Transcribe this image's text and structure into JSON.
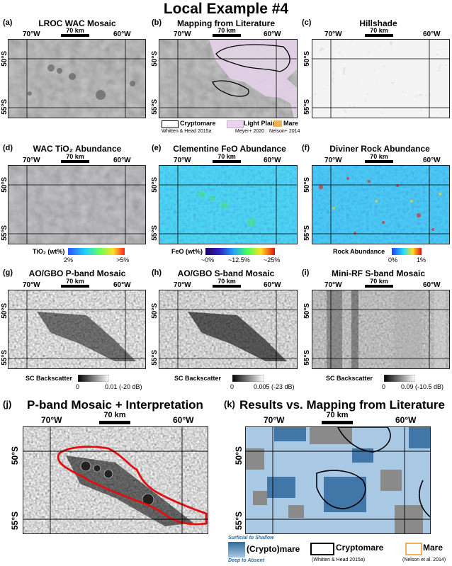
{
  "page_title": "Local Example #4",
  "scale_label": "70 km",
  "lon_labels": [
    "70°W",
    "60°W"
  ],
  "lat_labels": [
    "50°S",
    "55°S"
  ],
  "panels": {
    "a": {
      "label": "(a)",
      "title": "LROC WAC Mosaic"
    },
    "b": {
      "label": "(b)",
      "title": "Mapping from Literature",
      "legend": [
        {
          "name": "Cryptomare",
          "source": "Whitten & Head 2015a",
          "color": "#ffffff"
        },
        {
          "name": "Light Plains",
          "source": "Meyer+ 2020",
          "color": "#e8d4ec"
        },
        {
          "name": "Mare",
          "source": "Nelson+ 2014",
          "color": "#f0b060"
        }
      ]
    },
    "c": {
      "label": "(c)",
      "title": "Hillshade"
    },
    "d": {
      "label": "(d)",
      "title": "WAC TiO₂ Abundance",
      "colorbar_label": "TiO₂ (wt%)",
      "ticks": [
        "2%",
        ">5%"
      ]
    },
    "e": {
      "label": "(e)",
      "title": "Clementine FeO Abundance",
      "colorbar_label": "FeO (wt%)",
      "ticks": [
        "~0%",
        "~12.5%",
        "~25%"
      ]
    },
    "f": {
      "label": "(f)",
      "title": "Diviner Rock Abundance",
      "colorbar_label": "Rock Abundance",
      "ticks": [
        "0%",
        "1%"
      ]
    },
    "g": {
      "label": "(g)",
      "title": "AO/GBO P-band Mosaic",
      "colorbar_label": "SC Backscatter",
      "ticks": [
        "0",
        "0.01 (-20 dB)"
      ]
    },
    "h": {
      "label": "(h)",
      "title": "AO/GBO S-band Mosaic",
      "colorbar_label": "SC Backscatter",
      "ticks": [
        "0",
        "0.005 (-23 dB)"
      ]
    },
    "i": {
      "label": "(i)",
      "title": "Mini-RF S-band Mosaic",
      "colorbar_label": "SC Backscatter",
      "ticks": [
        "0",
        "0.09 (-10.5 dB)"
      ]
    },
    "j": {
      "label": "(j)",
      "title": "P-band Mosaic + Interpretation"
    },
    "k": {
      "label": "(k)",
      "title": "Results vs. Mapping from Literature",
      "legend": {
        "gradient_top": "Surficial to Shallow",
        "gradient_name": "(Crypto)mare",
        "gradient_bottom": "Deep to Absent",
        "cryptomare": "Cryptomare",
        "cryptomare_source": "(Whitten & Head 2015a)",
        "mare": "Mare",
        "mare_source": "(Nelson et al. 2014)"
      }
    }
  },
  "colors": {
    "interpretation_outline": "#e01010",
    "mare": "#f0b060",
    "light_plains": "#e8d4ec",
    "result_deep": "#2e6a9e",
    "result_shallow": "#a9c8e4"
  }
}
